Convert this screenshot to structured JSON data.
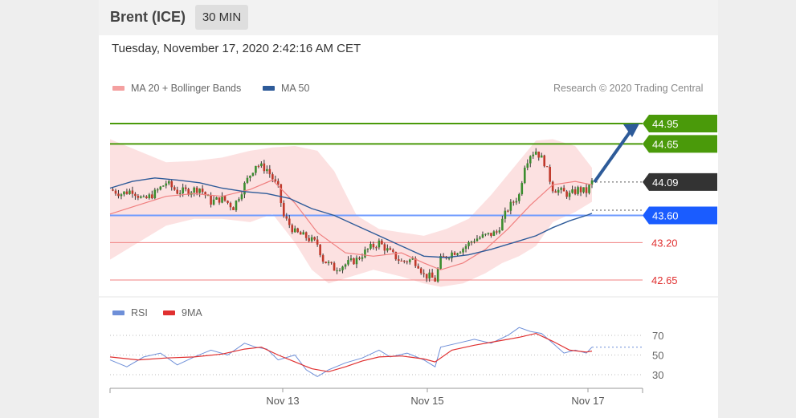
{
  "header": {
    "instrument": "Brent (ICE)",
    "interval": "30 MIN"
  },
  "timestamp": "Tuesday, November 17, 2020 2:42:16 AM CET",
  "credit": "Research © 2020 Trading Central",
  "colors": {
    "bollinger": "#f08080",
    "ma50": "#2e5b99",
    "resistance": "#4a9a0a",
    "support": "#1a5cff",
    "current": "#333333",
    "minor": "#e03030",
    "rsi": "#6e8fd8",
    "rsi_ma": "#e03030"
  },
  "chart_data": [
    {
      "type": "candlestick",
      "legend": [
        "MA 20 + Bollinger Bands",
        "MA 50"
      ],
      "x_ticks": [
        "Nov 13",
        "Nov 15",
        "Nov 17"
      ],
      "ylim": [
        42.5,
        45.0
      ],
      "price_levels": [
        {
          "label": "44.95",
          "value": 44.95,
          "kind": "resistance"
        },
        {
          "label": "44.65",
          "value": 44.65,
          "kind": "resistance"
        },
        {
          "label": "44.09",
          "value": 44.09,
          "kind": "current"
        },
        {
          "label": "43.60",
          "value": 43.6,
          "kind": "support"
        },
        {
          "label": "43.20",
          "value": 43.2,
          "kind": "minor"
        },
        {
          "label": "42.65",
          "value": 42.65,
          "kind": "minor"
        }
      ],
      "forecast_arrow": {
        "from": 44.09,
        "to": 44.95
      },
      "close_path": [
        [
          0,
          43.98
        ],
        [
          4,
          43.92
        ],
        [
          8,
          43.97
        ],
        [
          12,
          43.82
        ],
        [
          16,
          43.93
        ],
        [
          20,
          44.08
        ],
        [
          24,
          43.95
        ],
        [
          28,
          43.96
        ],
        [
          32,
          44.0
        ],
        [
          36,
          43.8
        ],
        [
          40,
          43.85
        ],
        [
          44,
          43.72
        ],
        [
          48,
          44.05
        ],
        [
          52,
          44.35
        ],
        [
          56,
          44.28
        ],
        [
          60,
          44.0
        ],
        [
          62,
          43.58
        ],
        [
          66,
          43.35
        ],
        [
          70,
          43.28
        ],
        [
          74,
          43.18
        ],
        [
          76,
          42.95
        ],
        [
          80,
          42.82
        ],
        [
          84,
          42.88
        ],
        [
          88,
          42.95
        ],
        [
          92,
          43.1
        ],
        [
          96,
          43.2
        ],
        [
          100,
          43.05
        ],
        [
          104,
          42.92
        ],
        [
          108,
          42.95
        ],
        [
          110,
          42.88
        ],
        [
          112,
          42.72
        ],
        [
          114,
          42.7
        ],
        [
          116,
          42.65
        ],
        [
          118,
          42.95
        ],
        [
          122,
          43.05
        ],
        [
          126,
          43.12
        ],
        [
          130,
          43.25
        ],
        [
          134,
          43.3
        ],
        [
          138,
          43.35
        ],
        [
          142,
          43.7
        ],
        [
          146,
          43.9
        ],
        [
          148,
          44.35
        ],
        [
          150,
          44.5
        ],
        [
          152,
          44.55
        ],
        [
          155,
          44.38
        ],
        [
          158,
          44.0
        ],
        [
          161,
          43.95
        ],
        [
          164,
          43.9
        ],
        [
          167,
          43.98
        ],
        [
          170,
          43.95
        ],
        [
          172,
          44.09
        ]
      ],
      "ma20_path": [
        [
          0,
          43.62
        ],
        [
          10,
          43.75
        ],
        [
          20,
          43.88
        ],
        [
          30,
          43.92
        ],
        [
          40,
          43.88
        ],
        [
          50,
          43.98
        ],
        [
          58,
          44.12
        ],
        [
          66,
          43.78
        ],
        [
          74,
          43.35
        ],
        [
          84,
          43.05
        ],
        [
          94,
          43.0
        ],
        [
          104,
          43.05
        ],
        [
          112,
          42.9
        ],
        [
          118,
          42.8
        ],
        [
          126,
          42.9
        ],
        [
          134,
          43.1
        ],
        [
          142,
          43.4
        ],
        [
          150,
          43.75
        ],
        [
          158,
          44.05
        ],
        [
          166,
          44.1
        ],
        [
          172,
          44.05
        ]
      ],
      "bb_upper_path": [
        [
          0,
          44.72
        ],
        [
          10,
          44.55
        ],
        [
          20,
          44.38
        ],
        [
          30,
          44.4
        ],
        [
          40,
          44.45
        ],
        [
          50,
          44.55
        ],
        [
          58,
          44.6
        ],
        [
          66,
          44.62
        ],
        [
          74,
          44.55
        ],
        [
          80,
          44.25
        ],
        [
          88,
          43.6
        ],
        [
          96,
          43.4
        ],
        [
          104,
          43.35
        ],
        [
          112,
          43.3
        ],
        [
          120,
          43.4
        ],
        [
          128,
          43.55
        ],
        [
          136,
          43.9
        ],
        [
          144,
          44.3
        ],
        [
          152,
          44.7
        ],
        [
          158,
          44.72
        ],
        [
          166,
          44.62
        ],
        [
          172,
          44.3
        ]
      ],
      "bb_lower_path": [
        [
          0,
          42.95
        ],
        [
          10,
          43.2
        ],
        [
          20,
          43.45
        ],
        [
          30,
          43.55
        ],
        [
          40,
          43.55
        ],
        [
          50,
          43.5
        ],
        [
          58,
          43.62
        ],
        [
          66,
          43.2
        ],
        [
          72,
          42.8
        ],
        [
          78,
          42.6
        ],
        [
          86,
          42.7
        ],
        [
          94,
          42.8
        ],
        [
          104,
          42.7
        ],
        [
          112,
          42.6
        ],
        [
          118,
          42.55
        ],
        [
          126,
          42.6
        ],
        [
          134,
          42.75
        ],
        [
          140,
          42.9
        ],
        [
          146,
          43.0
        ],
        [
          152,
          43.15
        ],
        [
          158,
          43.5
        ],
        [
          166,
          43.65
        ],
        [
          172,
          43.8
        ]
      ],
      "ma50_path": [
        [
          0,
          44.0
        ],
        [
          8,
          44.1
        ],
        [
          16,
          44.15
        ],
        [
          24,
          44.12
        ],
        [
          32,
          44.08
        ],
        [
          40,
          44.0
        ],
        [
          48,
          43.95
        ],
        [
          56,
          43.92
        ],
        [
          64,
          43.85
        ],
        [
          72,
          43.7
        ],
        [
          80,
          43.6
        ],
        [
          88,
          43.45
        ],
        [
          96,
          43.3
        ],
        [
          104,
          43.15
        ],
        [
          112,
          43.0
        ],
        [
          120,
          42.98
        ],
        [
          128,
          43.02
        ],
        [
          136,
          43.1
        ],
        [
          144,
          43.2
        ],
        [
          152,
          43.3
        ],
        [
          158,
          43.42
        ],
        [
          164,
          43.52
        ],
        [
          170,
          43.6
        ],
        [
          172,
          43.63
        ]
      ]
    },
    {
      "type": "line",
      "legend": [
        "RSI",
        "9MA"
      ],
      "y_ticks": [
        "70",
        "50",
        "30"
      ],
      "ylim": [
        20,
        80
      ],
      "rsi_path": [
        [
          0,
          45
        ],
        [
          6,
          38
        ],
        [
          12,
          48
        ],
        [
          18,
          52
        ],
        [
          24,
          40
        ],
        [
          30,
          48
        ],
        [
          36,
          55
        ],
        [
          42,
          50
        ],
        [
          48,
          62
        ],
        [
          52,
          58
        ],
        [
          56,
          56
        ],
        [
          60,
          45
        ],
        [
          66,
          50
        ],
        [
          70,
          35
        ],
        [
          74,
          28
        ],
        [
          78,
          35
        ],
        [
          84,
          42
        ],
        [
          90,
          47
        ],
        [
          96,
          55
        ],
        [
          100,
          48
        ],
        [
          106,
          52
        ],
        [
          112,
          45
        ],
        [
          116,
          38
        ],
        [
          118,
          58
        ],
        [
          124,
          62
        ],
        [
          130,
          66
        ],
        [
          136,
          62
        ],
        [
          142,
          70
        ],
        [
          146,
          78
        ],
        [
          150,
          74
        ],
        [
          154,
          72
        ],
        [
          158,
          62
        ],
        [
          162,
          52
        ],
        [
          166,
          55
        ],
        [
          170,
          52
        ],
        [
          172,
          58
        ]
      ],
      "rsi_ma_path": [
        [
          0,
          48
        ],
        [
          10,
          45
        ],
        [
          20,
          47
        ],
        [
          30,
          48
        ],
        [
          40,
          51
        ],
        [
          48,
          56
        ],
        [
          54,
          58
        ],
        [
          60,
          50
        ],
        [
          66,
          43
        ],
        [
          72,
          36
        ],
        [
          78,
          33
        ],
        [
          84,
          38
        ],
        [
          90,
          44
        ],
        [
          96,
          48
        ],
        [
          104,
          49
        ],
        [
          112,
          46
        ],
        [
          116,
          43
        ],
        [
          122,
          55
        ],
        [
          130,
          60
        ],
        [
          138,
          64
        ],
        [
          146,
          68
        ],
        [
          152,
          72
        ],
        [
          158,
          64
        ],
        [
          164,
          55
        ],
        [
          170,
          53
        ],
        [
          172,
          54
        ]
      ]
    }
  ]
}
